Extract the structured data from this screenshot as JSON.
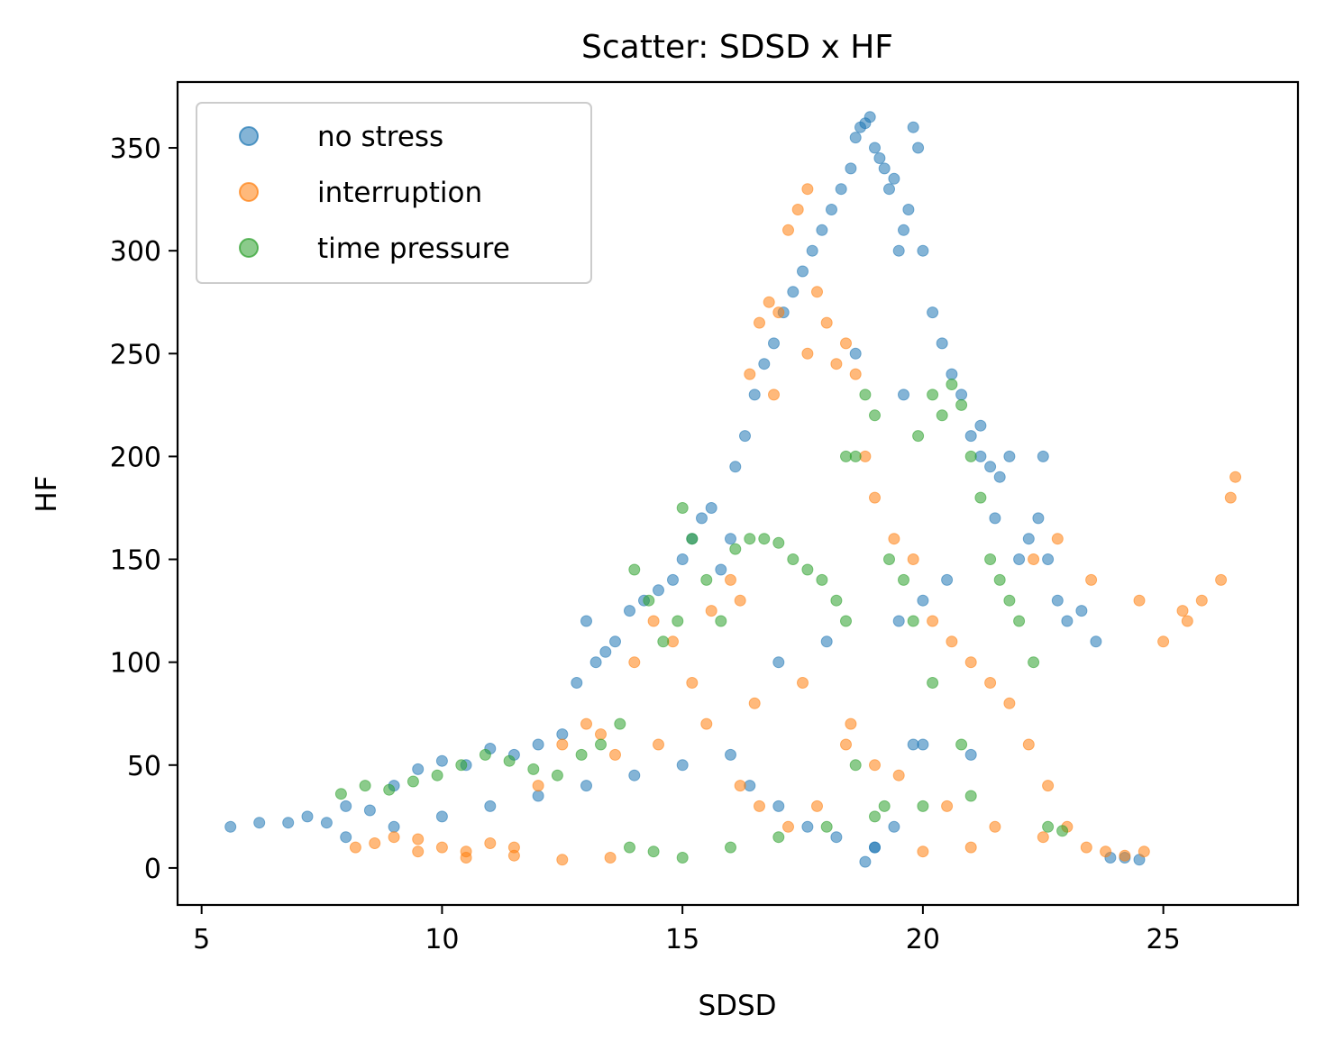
{
  "chart_data": {
    "type": "scatter",
    "title": "Scatter: SDSD x HF",
    "xlabel": "SDSD",
    "ylabel": "HF",
    "xlim": [
      4.5,
      27.8
    ],
    "ylim": [
      -18,
      382
    ],
    "xticks": [
      5,
      10,
      15,
      20,
      25
    ],
    "yticks": [
      0,
      50,
      100,
      150,
      200,
      250,
      300,
      350
    ],
    "grid": false,
    "legend_position": "upper-left",
    "series": [
      {
        "name": "no stress",
        "color": "#1f77b4",
        "x": [
          5.6,
          6.2,
          6.8,
          7.2,
          7.6,
          8.0,
          8.5,
          9.0,
          9.5,
          10.0,
          10.5,
          11.0,
          11.5,
          12.0,
          12.5,
          12.8,
          13.0,
          13.2,
          13.4,
          13.6,
          13.9,
          14.2,
          14.5,
          14.8,
          15.0,
          15.2,
          15.4,
          15.6,
          15.8,
          16.0,
          16.1,
          16.3,
          16.5,
          16.7,
          16.9,
          17.1,
          17.3,
          17.5,
          17.7,
          17.9,
          18.1,
          18.3,
          18.5,
          18.6,
          18.7,
          18.8,
          18.9,
          19.0,
          19.1,
          19.2,
          19.3,
          19.4,
          19.5,
          19.6,
          19.7,
          19.8,
          19.9,
          20.0,
          20.2,
          20.4,
          20.6,
          20.8,
          21.0,
          21.2,
          21.4,
          21.6,
          21.8,
          22.0,
          22.2,
          22.4,
          22.6,
          22.8,
          23.0,
          23.3,
          23.6,
          23.9,
          24.2,
          24.5,
          18.8,
          19.0,
          19.4,
          19.8,
          16.0,
          16.4,
          17.0,
          17.6,
          18.2,
          19.0,
          20.0,
          21.0,
          15.0,
          14.0,
          13.0,
          12.0,
          11.0,
          10.0,
          9.0,
          8.0,
          17.0,
          18.0,
          19.5,
          20.5,
          21.5,
          22.5,
          20.0,
          21.2,
          19.6,
          18.6
        ],
        "y": [
          20,
          22,
          22,
          25,
          22,
          30,
          28,
          40,
          48,
          52,
          50,
          58,
          55,
          60,
          65,
          90,
          120,
          100,
          105,
          110,
          125,
          130,
          135,
          140,
          150,
          160,
          170,
          175,
          145,
          160,
          195,
          210,
          230,
          245,
          255,
          270,
          280,
          290,
          300,
          310,
          320,
          330,
          340,
          355,
          360,
          362,
          365,
          350,
          345,
          340,
          330,
          335,
          300,
          310,
          320,
          360,
          350,
          300,
          270,
          255,
          240,
          230,
          210,
          200,
          195,
          190,
          200,
          150,
          160,
          170,
          150,
          130,
          120,
          125,
          110,
          5,
          5,
          4,
          3,
          10,
          20,
          60,
          55,
          40,
          30,
          20,
          15,
          10,
          60,
          55,
          50,
          45,
          40,
          35,
          30,
          25,
          20,
          15,
          100,
          110,
          120,
          140,
          170,
          200,
          130,
          215,
          230,
          250
        ],
        "opacity": 0.55
      },
      {
        "name": "interruption",
        "color": "#ff7f0e",
        "x": [
          8.2,
          8.6,
          9.0,
          9.5,
          10.0,
          10.5,
          11.0,
          11.5,
          12.0,
          12.5,
          13.0,
          13.3,
          13.6,
          14.0,
          14.4,
          14.8,
          15.2,
          15.6,
          16.0,
          16.2,
          16.4,
          16.6,
          16.8,
          17.0,
          17.2,
          17.4,
          17.6,
          17.8,
          18.0,
          18.2,
          18.4,
          18.6,
          18.8,
          19.0,
          19.4,
          19.8,
          20.2,
          20.6,
          21.0,
          21.4,
          21.8,
          22.2,
          22.6,
          23.0,
          23.4,
          23.8,
          24.2,
          24.6,
          25.0,
          25.4,
          25.8,
          26.2,
          26.5,
          22.3,
          22.8,
          23.5,
          24.5,
          25.5,
          26.4,
          16.2,
          16.6,
          17.2,
          17.8,
          18.4,
          19.0,
          17.6,
          16.9,
          14.5,
          15.5,
          16.5,
          17.5,
          18.5,
          19.5,
          20.5,
          21.5,
          22.5,
          21.0,
          20.0,
          13.5,
          12.5,
          11.5,
          10.5,
          9.5
        ],
        "y": [
          10,
          12,
          15,
          14,
          10,
          8,
          12,
          10,
          40,
          60,
          70,
          65,
          55,
          100,
          120,
          110,
          90,
          125,
          140,
          130,
          240,
          265,
          275,
          270,
          310,
          320,
          330,
          280,
          265,
          245,
          255,
          240,
          200,
          180,
          160,
          150,
          120,
          110,
          100,
          90,
          80,
          60,
          40,
          20,
          10,
          8,
          6,
          8,
          110,
          125,
          130,
          140,
          190,
          150,
          160,
          140,
          130,
          120,
          180,
          40,
          30,
          20,
          30,
          60,
          50,
          250,
          230,
          60,
          70,
          80,
          90,
          70,
          45,
          30,
          20,
          15,
          10,
          8,
          5,
          4,
          6,
          5,
          8
        ],
        "opacity": 0.55
      },
      {
        "name": "time pressure",
        "color": "#2ca02c",
        "x": [
          7.9,
          8.4,
          8.9,
          9.4,
          9.9,
          10.4,
          10.9,
          11.4,
          11.9,
          12.4,
          12.9,
          13.3,
          13.7,
          14.0,
          14.3,
          14.6,
          14.9,
          15.0,
          15.2,
          15.5,
          15.8,
          16.1,
          16.4,
          16.7,
          17.0,
          17.3,
          17.6,
          17.9,
          18.2,
          18.4,
          18.6,
          18.8,
          19.0,
          19.3,
          19.6,
          19.9,
          20.2,
          20.4,
          20.6,
          20.8,
          21.0,
          21.2,
          21.4,
          21.6,
          21.8,
          22.0,
          22.3,
          22.6,
          22.9,
          13.9,
          14.4,
          15.0,
          16.0,
          17.0,
          18.0,
          19.0,
          20.0,
          21.0,
          18.6,
          19.2,
          20.8,
          20.2,
          19.8,
          18.4
        ],
        "y": [
          36,
          40,
          38,
          42,
          45,
          50,
          55,
          52,
          48,
          45,
          55,
          60,
          70,
          145,
          130,
          110,
          120,
          175,
          160,
          140,
          120,
          155,
          160,
          160,
          158,
          150,
          145,
          140,
          130,
          120,
          200,
          230,
          220,
          150,
          140,
          210,
          230,
          220,
          235,
          225,
          200,
          180,
          150,
          140,
          130,
          120,
          100,
          20,
          18,
          10,
          8,
          5,
          10,
          15,
          20,
          25,
          30,
          35,
          50,
          30,
          60,
          90,
          120,
          200
        ],
        "opacity": 0.55
      }
    ]
  }
}
